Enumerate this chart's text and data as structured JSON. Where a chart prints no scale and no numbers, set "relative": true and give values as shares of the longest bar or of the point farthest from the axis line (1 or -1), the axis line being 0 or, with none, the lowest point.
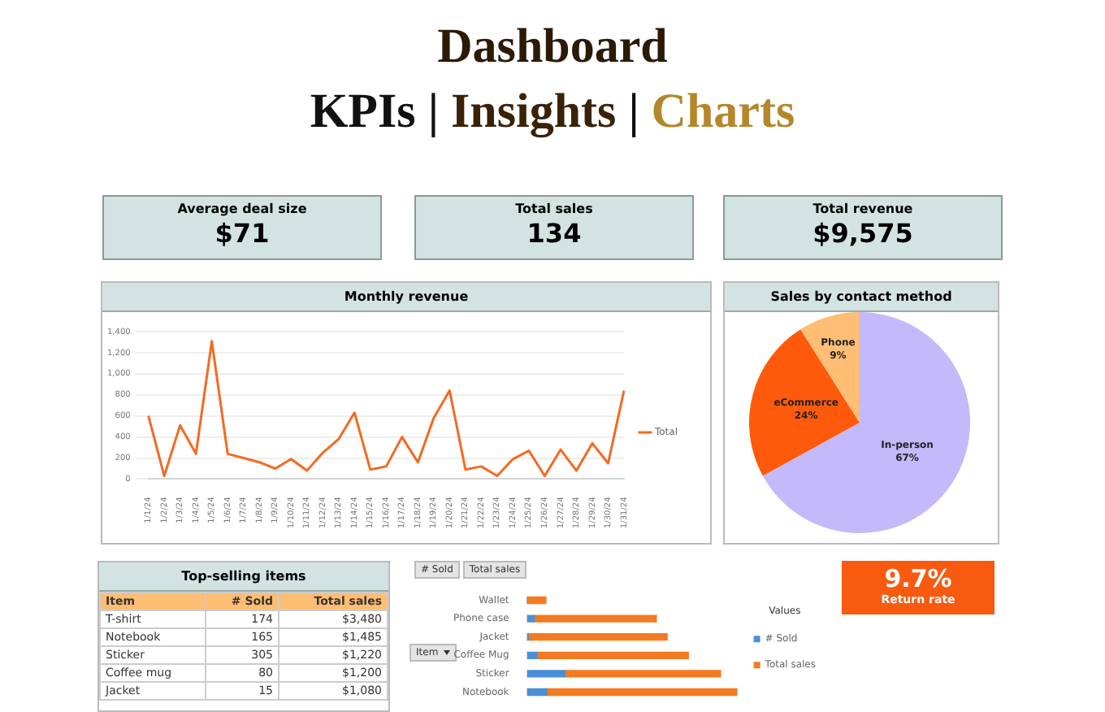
{
  "chart_data": [
    {
      "type": "other",
      "title": "Dashboard",
      "subtitle": "KPIs | Insights | Charts",
      "annotations": [
        "Average deal size",
        "$71",
        "Total sales",
        "134",
        "Total revenue",
        "$9,575"
      ]
    },
    {
      "type": "line",
      "title": "Monthly revenue",
      "categories": [
        "1/1/24",
        "1/2/24",
        "1/3/24",
        "1/4/24",
        "1/5/24",
        "1/6/24",
        "1/7/24",
        "1/8/24",
        "1/9/24",
        "1/10/24",
        "1/11/24",
        "1/12/24",
        "1/13/24",
        "1/14/24",
        "1/15/24",
        "1/16/24",
        "1/17/24",
        "1/18/24",
        "1/19/24",
        "1/20/24",
        "1/21/24",
        "1/22/24",
        "1/23/24",
        "1/24/24",
        "1/25/24",
        "1/26/24",
        "1/27/24",
        "1/28/24",
        "1/29/24",
        "1/30/24",
        "1/31/24"
      ],
      "series": [
        {
          "name": "Total",
          "color": "#f46a22",
          "values": [
            600,
            30,
            510,
            240,
            1310,
            240,
            200,
            160,
            100,
            190,
            80,
            250,
            380,
            630,
            90,
            120,
            400,
            160,
            580,
            840,
            90,
            120,
            30,
            190,
            270,
            30,
            280,
            80,
            340,
            150,
            840
          ]
        }
      ],
      "ylim": [
        0,
        1400
      ],
      "yticks": [
        0,
        200,
        400,
        600,
        800,
        {
          "value": 1000,
          "label": "1,000"
        },
        {
          "value": 1200,
          "label": "1,200"
        },
        {
          "value": 1400,
          "label": "1,400"
        }
      ],
      "grid": "y",
      "legend": "right",
      "marker": "none"
    },
    {
      "type": "pie",
      "title": "Sales by contact method",
      "categories": [
        "In-person",
        "eCommerce",
        "Phone"
      ],
      "values": [
        67,
        24,
        9
      ],
      "colors": [
        "#c3b9fb",
        "#ff5a0c",
        "#ffbe74"
      ],
      "value_labels": [
        "67%",
        "24%",
        "9%"
      ]
    },
    {
      "type": "other",
      "title": "Top-selling items",
      "annotations": [
        "Item",
        "# Sold",
        "Total sales",
        "T-shirt",
        "174",
        "$3,480",
        "Notebook",
        "165",
        "$1,485",
        "Sticker",
        "305",
        "$1,220",
        "Coffee mug",
        "80",
        "$1,200",
        "Jacket",
        "15",
        "$1,080"
      ]
    },
    {
      "type": "bar",
      "orientation": "horizontal",
      "stacked": true,
      "relative": true,
      "categories": [
        "Wallet",
        "Phone case",
        "Jacket",
        "Coffee Mug",
        "Sticker",
        "Notebook"
      ],
      "series": [
        {
          "name": "# Sold",
          "color": "#4a8fd8",
          "values": [
            0,
            0.035,
            0.006,
            0.047,
            0.18,
            0.094
          ]
        },
        {
          "name": "Total sales",
          "color": "#f47a22",
          "values": [
            0.09,
            0.58,
            0.66,
            0.72,
            0.74,
            0.906
          ]
        }
      ],
      "legend": "right",
      "legend_title": "Values",
      "annotations": [
        "Item"
      ]
    },
    {
      "type": "other",
      "title": "Return rate",
      "annotations": [
        "9.7%"
      ]
    }
  ]
}
